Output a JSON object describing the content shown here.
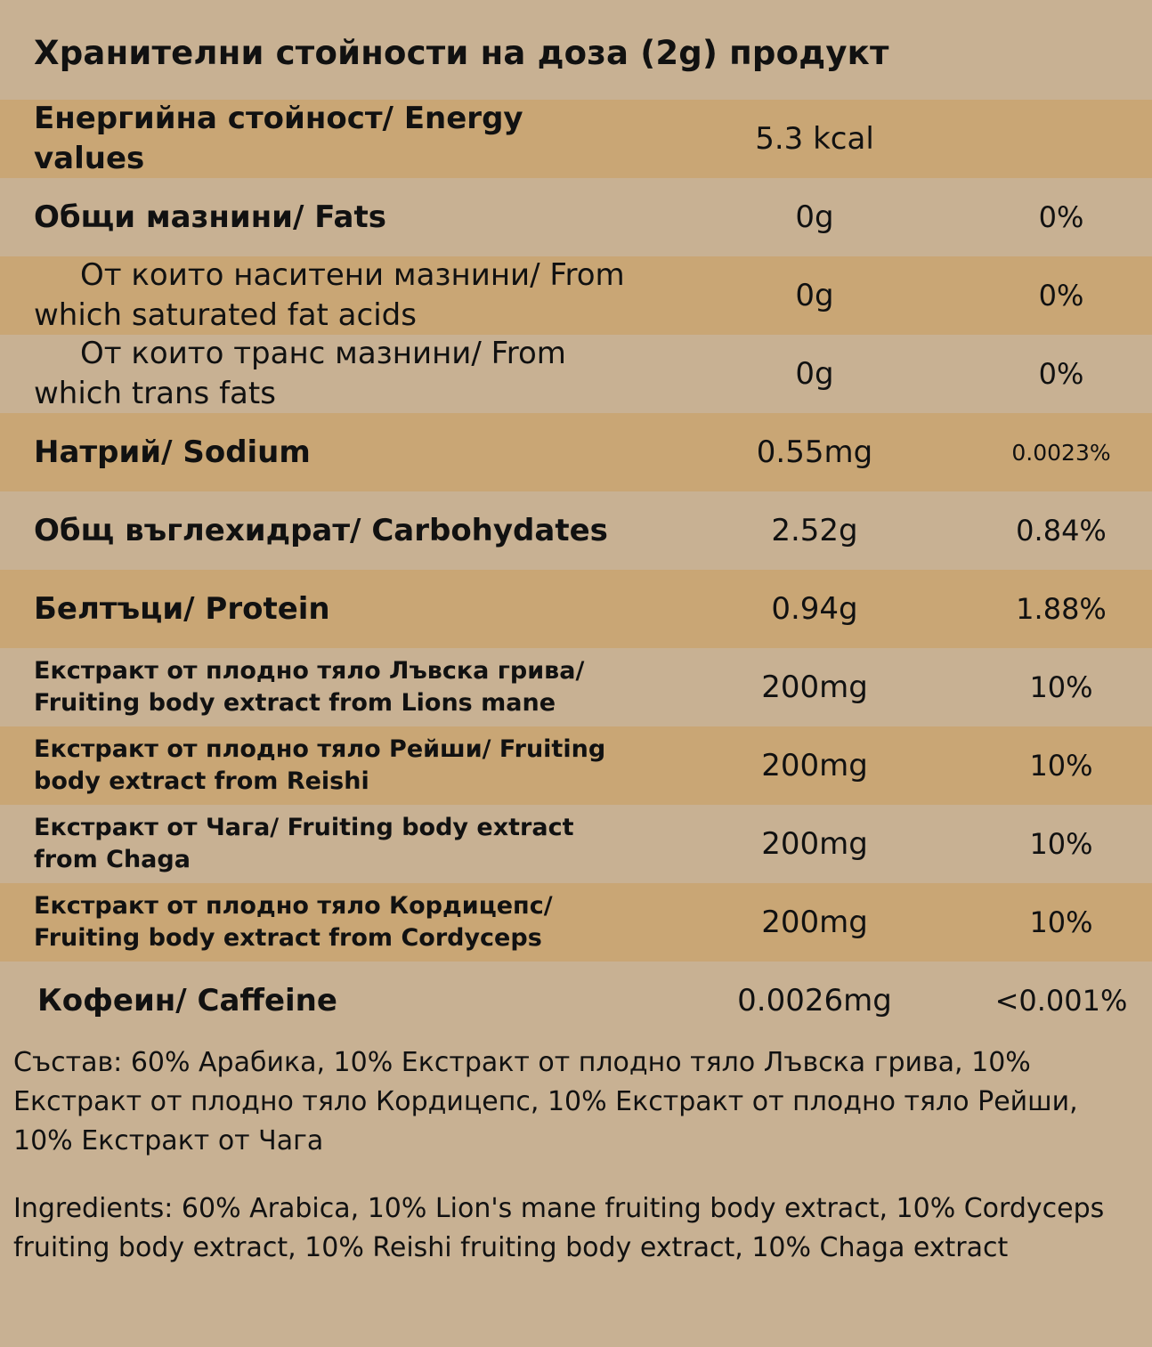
{
  "title": "Хранителни стойности на доза (2g) продукт",
  "rows": [
    {
      "label_b": "Енергийна стойност/ ",
      "label_n": "Energy values",
      "value": "5.3 kcal",
      "percent": ""
    },
    {
      "label_b": "Общи мазнини/ ",
      "label_n": "Fats",
      "value": "0g",
      "percent": "0%"
    },
    {
      "label_b": "",
      "label_n": "От които наситени мазнини/ From which saturated fat acids",
      "value": "0g",
      "percent": "0%"
    },
    {
      "label_b": "",
      "label_n": "От които транс мазнини/ From which trans fats",
      "value": "0g",
      "percent": "0%"
    },
    {
      "label_b": "Натрий/ ",
      "label_n": "Sodium",
      "value": "0.55mg",
      "percent": "0.0023%"
    },
    {
      "label_b": "Общ въглехидрат/ ",
      "label_n": "Carbohydates",
      "value": "2.52g",
      "percent": "0.84%"
    },
    {
      "label_b": "Белтъци/ ",
      "label_n": "Protein",
      "value": "0.94g",
      "percent": "1.88%"
    },
    {
      "label_b": "Екстракт от плодно тяло Лъвска грива/ ",
      "label_n": "Fruiting body extract from Lions mane",
      "value": "200mg",
      "percent": "10%"
    },
    {
      "label_b": "Екстракт от плодно тяло Рейши/ ",
      "label_n": "Fruiting body extract from Reishi",
      "value": "200mg",
      "percent": "10%"
    },
    {
      "label_b": "Екстракт от Чага/ ",
      "label_n": "Fruiting body extract from Chaga",
      "value": "200mg",
      "percent": "10%"
    },
    {
      "label_b": "Екстракт от плодно тяло Кордицепс/ ",
      "label_n": "Fruiting body extract from Cordyceps",
      "value": "200mg",
      "percent": "10%"
    },
    {
      "label_b": "Кофеин/ ",
      "label_n": "Caffeine",
      "value": "0.0026mg",
      "percent": "<0.001%"
    }
  ],
  "composition_bg": "Състав: 60% Арабика, 10% Екстракт от плодно тяло Лъвска грива, 10% Екстракт от плодно тяло Кордицепс, 10% Екстракт от плодно тяло Рейши, 10% Екстракт от Чага",
  "ingredients_en": "Ingredients: 60% Arabica, 10% Lion's mane fruiting body extract, 10% Cordyceps fruiting body extract, 10% Reishi fruiting body extract, 10% Chaga extract",
  "colors": {
    "background": "#c8b193",
    "band": "#c9a675",
    "text": "#111111"
  }
}
